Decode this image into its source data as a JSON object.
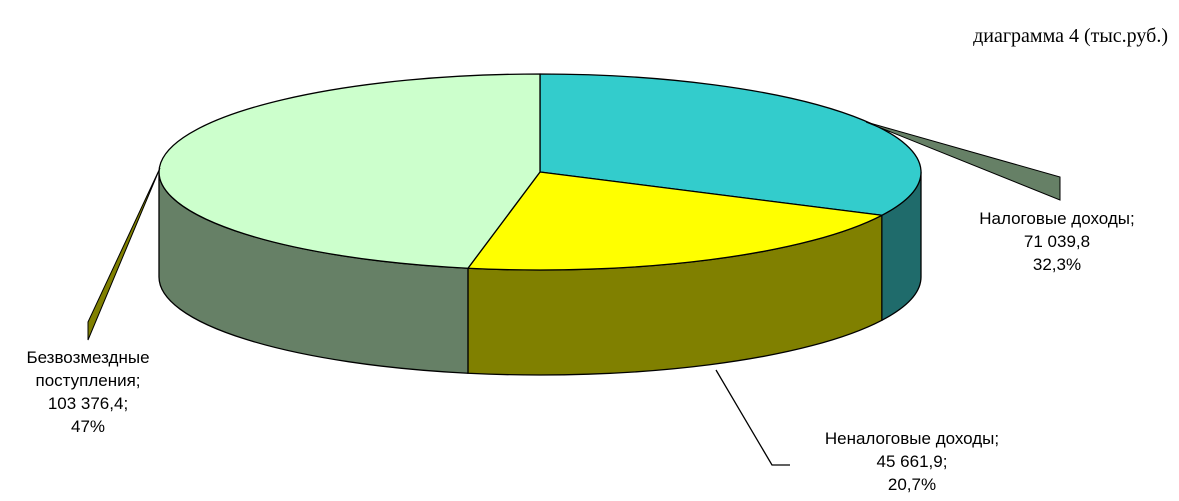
{
  "chart_data": {
    "type": "pie",
    "title": "диаграмма 4 (тыс.руб.)",
    "slices": [
      {
        "category": "Налоговые доходы",
        "value": 71039.8,
        "percent": 32.3,
        "label_lines": [
          "Налоговые доходы;",
          "71 039,8",
          "32,3%"
        ],
        "top_color": "#33CCCC",
        "side_color": "#1F6B6B"
      },
      {
        "category": "Неналоговые доходы",
        "value": 45661.9,
        "percent": 20.7,
        "label_lines": [
          "Неналоговые доходы;",
          "45 661,9;",
          "20,7%"
        ],
        "top_color": "#FFFF00",
        "side_color": "#808000"
      },
      {
        "category": "Безвозмездные поступления",
        "value": 103376.4,
        "percent": 47,
        "label_lines": [
          "Безвозмездные",
          "поступления;",
          "103 376,4;",
          "47%"
        ],
        "top_color": "#CCFFCC",
        "side_color": "#668066"
      }
    ],
    "legend": "none"
  }
}
